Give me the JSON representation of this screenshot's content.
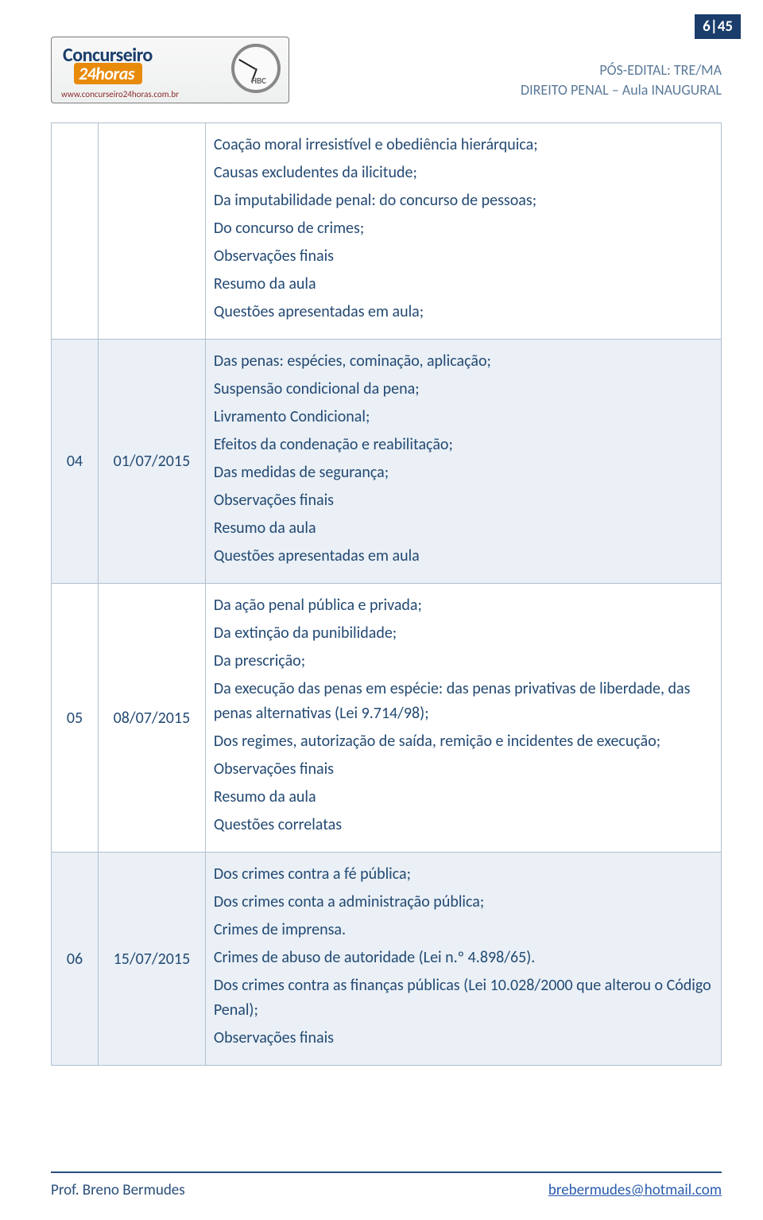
{
  "page_number_badge": "6|45",
  "header": {
    "logo_line1": "Concurseiro",
    "logo_line2": "24horas",
    "logo_url": "www.concurseiro24horas.com.br",
    "logo_label": "HBC",
    "line1": "PÓS-EDITAL: TRE/MA",
    "line2": "DIREITO PENAL – Aula INAUGURAL"
  },
  "colors": {
    "badge_bg": "#1a3d6b",
    "header_text": "#5b7a9a",
    "cell_text": "#244a73",
    "border": "#b0c0d0",
    "alt_row": "#eaf0f6",
    "footer_rule": "#2a4f7a",
    "email": "#2a5cae"
  },
  "table": {
    "col_widths_pct": [
      7,
      16,
      77
    ],
    "rows": [
      {
        "num": "",
        "date": "",
        "alt": false,
        "items": [
          "Coação moral irresistível e obediência hierárquica;",
          "Causas excludentes da ilicitude;",
          "Da imputabilidade penal: do concurso de pessoas;",
          "Do concurso de crimes;",
          "Observações finais",
          "Resumo da aula",
          "Questões apresentadas em aula;"
        ]
      },
      {
        "num": "04",
        "date": "01/07/2015",
        "alt": true,
        "items": [
          "Das penas: espécies, cominação, aplicação;",
          "Suspensão condicional da pena;",
          "Livramento Condicional;",
          "Efeitos da condenação e reabilitação;",
          "Das medidas de segurança;",
          "Observações finais",
          "Resumo da aula",
          "Questões apresentadas em aula"
        ]
      },
      {
        "num": "05",
        "date": "08/07/2015",
        "alt": false,
        "items": [
          "Da ação penal pública e privada;",
          "Da extinção da punibilidade;",
          "Da prescrição;",
          "Da execução das penas em espécie: das penas privativas de liberdade, das penas alternativas (Lei 9.714/98);",
          "Dos regimes, autorização de saída, remição e incidentes de execução;",
          "Observações finais",
          "Resumo da aula",
          "Questões correlatas"
        ]
      },
      {
        "num": "06",
        "date": "15/07/2015",
        "alt": true,
        "items": [
          "Dos crimes contra a fé pública;",
          "Dos crimes conta a administração pública;",
          "Crimes de imprensa.",
          "Crimes de abuso de autoridade (Lei n.º 4.898/65).",
          "Dos crimes contra as finanças públicas (Lei 10.028/2000 que alterou o Código Penal);",
          "Observações finais"
        ]
      }
    ]
  },
  "footer": {
    "left": "Prof.  Breno Bermudes",
    "email": "brebermudes@hotmail.com"
  }
}
